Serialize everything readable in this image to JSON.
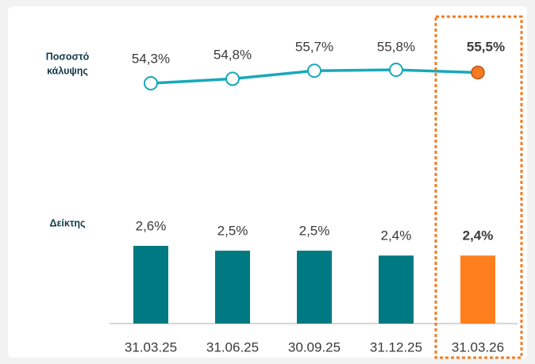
{
  "chart_data": [
    {
      "type": "line",
      "label": [
        "Ποσοστό",
        "κάλυψης"
      ],
      "values": [
        54.3,
        54.8,
        55.7,
        55.8,
        55.5
      ],
      "value_labels": [
        "54,3%",
        "54,8%",
        "55,7%",
        "55,8%",
        "55,5%"
      ],
      "color": "#17a9b9",
      "marker_colors": [
        "#ffffff",
        "#ffffff",
        "#ffffff",
        "#ffffff",
        "#f47b20"
      ],
      "ylim": [
        50,
        60
      ],
      "highlight": 4
    },
    {
      "type": "bar",
      "label": "Δείκτης",
      "categories": [
        "31.03.25",
        "31.06.25",
        "30.09.25",
        "31.12.25",
        "31.03.26"
      ],
      "values": [
        2.6,
        2.5,
        2.5,
        2.4,
        2.4
      ],
      "value_labels": [
        "2,6%",
        "2,5%",
        "2,5%",
        "2,4%",
        "2,4%"
      ],
      "colors": [
        "#007a82",
        "#007a82",
        "#007a82",
        "#007a82",
        "#ff7f1e"
      ],
      "ylim": [
        1,
        2.6
      ],
      "highlight": 4
    }
  ]
}
